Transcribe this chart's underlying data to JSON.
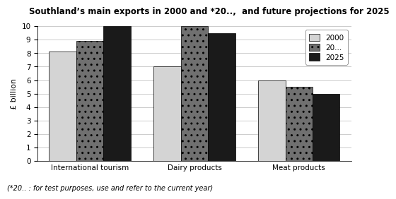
{
  "title": "Southland’s main exports in 2000 and *20..,  and future projections for 2025",
  "footnote": "(*20.. : for test purposes, use and refer to the current year)",
  "categories": [
    "International tourism",
    "Dairy products",
    "Meat products"
  ],
  "series": {
    "2000": [
      8.1,
      7.0,
      6.0
    ],
    "20...": [
      8.9,
      10.0,
      5.5
    ],
    "2025": [
      10.0,
      9.5,
      5.0
    ]
  },
  "legend_labels": [
    "2000",
    "20...",
    "2025"
  ],
  "ylabel": "£ billion",
  "ylim": [
    0,
    10
  ],
  "yticks": [
    0,
    1,
    2,
    3,
    4,
    5,
    6,
    7,
    8,
    9,
    10
  ],
  "bar_colors": [
    "#d4d4d4",
    "#707070",
    "#1a1a1a"
  ],
  "bar_hatches": [
    "",
    "..",
    ""
  ],
  "background_color": "#ffffff",
  "grid_color": "#cccccc",
  "title_fontsize": 8.5,
  "axis_fontsize": 8,
  "tick_fontsize": 7.5,
  "footnote_fontsize": 7,
  "bar_width": 0.26,
  "legend_fontsize": 7.5
}
